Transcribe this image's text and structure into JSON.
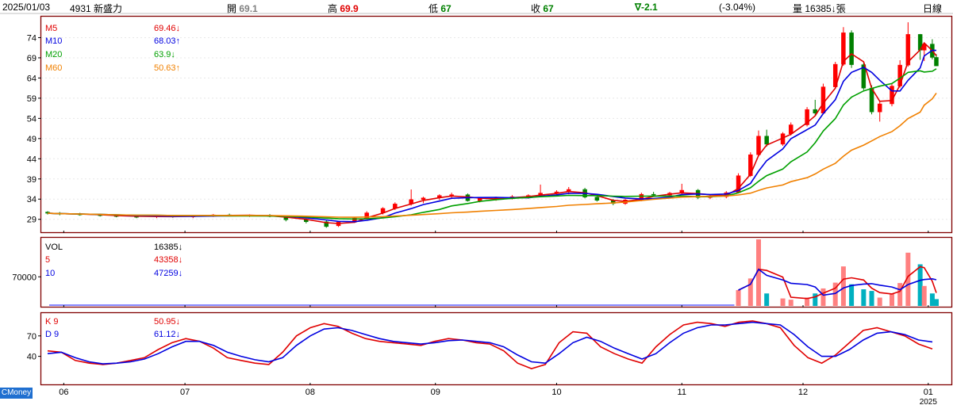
{
  "header": {
    "date": "2025/01/03",
    "stock": "4931 新盛力",
    "open_label": "開",
    "open": "69.1",
    "high_label": "高",
    "high": "69.9",
    "low_label": "低",
    "low": "67",
    "close_label": "收",
    "close": "67",
    "change": "∇-2.1",
    "change_pct": "(-3.04%)",
    "volume_label": "量",
    "volume": "16385↓張",
    "period": "日線"
  },
  "branding": {
    "label": "CMoney"
  },
  "colors": {
    "up": "#ff0000",
    "down": "#008000",
    "frame": "#800000",
    "ma5": "#e00000",
    "ma10": "#0000e0",
    "ma20": "#00a000",
    "ma60": "#f08000",
    "vol_up": "#ff8080",
    "vol_down": "#00b0c0",
    "k": "#e00000",
    "d": "#0000e0"
  },
  "legends": {
    "ma5": {
      "label": "M5",
      "value": "69.46↓"
    },
    "ma10": {
      "label": "M10",
      "value": "68.03↑"
    },
    "ma20": {
      "label": "M20",
      "value": "63.9↓"
    },
    "ma60": {
      "label": "M60",
      "value": "50.63↑"
    },
    "vol": {
      "label": "VOL",
      "value": "16385↓"
    },
    "vol5": {
      "label": "5",
      "value": "43358↓"
    },
    "vol10": {
      "label": "10",
      "value": "47259↓"
    },
    "k9": {
      "label": "K 9",
      "value": "50.95↓"
    },
    "d9": {
      "label": "D 9",
      "value": "61.12↓"
    }
  },
  "chart_data": [
    {
      "type": "candlestick",
      "title": "4931 新盛力 日線",
      "ylim": [
        26,
        79
      ],
      "yticks": [
        "74",
        "69",
        "64",
        "59",
        "54",
        "49",
        "44",
        "39",
        "34",
        "29"
      ],
      "xticks": [
        "06",
        "07",
        "08",
        "09",
        "10",
        "11",
        "12",
        "01"
      ],
      "xtick_sub": "2025",
      "x_range": [
        "2024-05-28",
        "2025-01-03"
      ],
      "candles_ohlc_estimated": [
        [
          "2024-05-28",
          30.8,
          31.0,
          30.2,
          30.5
        ],
        [
          "2024-05-31",
          30.5,
          30.8,
          30.0,
          30.3
        ],
        [
          "2024-06-05",
          30.3,
          30.6,
          29.9,
          30.1
        ],
        [
          "2024-06-10",
          30.1,
          30.4,
          29.7,
          30.0
        ],
        [
          "2024-06-14",
          30.0,
          30.2,
          29.5,
          29.7
        ],
        [
          "2024-06-19",
          29.7,
          30.0,
          29.3,
          29.6
        ],
        [
          "2024-06-24",
          29.6,
          30.0,
          29.3,
          29.8
        ],
        [
          "2024-06-28",
          29.8,
          30.1,
          29.4,
          29.6
        ],
        [
          "2024-07-03",
          29.6,
          30.0,
          29.3,
          29.9
        ],
        [
          "2024-07-08",
          29.9,
          30.3,
          29.6,
          30.1
        ],
        [
          "2024-07-12",
          30.1,
          30.4,
          29.8,
          29.9
        ],
        [
          "2024-07-17",
          29.9,
          30.2,
          29.6,
          30.0
        ],
        [
          "2024-07-22",
          30.0,
          30.3,
          29.5,
          29.7
        ],
        [
          "2024-07-26",
          29.7,
          29.9,
          28.5,
          28.9
        ],
        [
          "2024-07-31",
          28.9,
          29.2,
          28.0,
          28.4
        ],
        [
          "2024-08-05",
          28.4,
          28.8,
          26.9,
          27.2
        ],
        [
          "2024-08-08",
          27.4,
          28.6,
          27.1,
          28.3
        ],
        [
          "2024-08-12",
          28.3,
          29.6,
          28.1,
          29.3
        ],
        [
          "2024-08-15",
          29.3,
          31.0,
          29.0,
          30.6
        ],
        [
          "2024-08-19",
          30.6,
          32.0,
          30.2,
          31.7
        ],
        [
          "2024-08-22",
          31.7,
          33.2,
          31.3,
          32.8
        ],
        [
          "2024-08-26",
          32.8,
          36.4,
          32.4,
          33.9
        ],
        [
          "2024-08-29",
          33.9,
          34.6,
          33.0,
          34.3
        ],
        [
          "2024-09-02",
          34.3,
          35.2,
          33.8,
          34.9
        ],
        [
          "2024-09-05",
          34.9,
          35.6,
          34.2,
          35.1
        ],
        [
          "2024-09-09",
          35.1,
          35.4,
          33.4,
          33.6
        ],
        [
          "2024-09-12",
          33.6,
          34.4,
          33.2,
          34.1
        ],
        [
          "2024-09-16",
          34.1,
          34.6,
          33.6,
          34.4
        ],
        [
          "2024-09-20",
          34.4,
          35.0,
          33.9,
          34.6
        ],
        [
          "2024-09-24",
          34.6,
          35.2,
          34.1,
          34.9
        ],
        [
          "2024-09-27",
          34.9,
          37.6,
          34.6,
          35.5
        ],
        [
          "2024-10-01",
          35.5,
          36.2,
          35.0,
          35.8
        ],
        [
          "2024-10-04",
          35.8,
          37.0,
          35.2,
          36.4
        ],
        [
          "2024-10-08",
          36.4,
          36.8,
          34.2,
          34.5
        ],
        [
          "2024-10-11",
          34.5,
          34.9,
          33.4,
          33.7
        ],
        [
          "2024-10-15",
          33.7,
          34.0,
          32.5,
          32.9
        ],
        [
          "2024-10-18",
          32.9,
          34.0,
          32.6,
          33.8
        ],
        [
          "2024-10-22",
          33.8,
          35.6,
          33.5,
          35.2
        ],
        [
          "2024-10-25",
          35.2,
          35.8,
          34.6,
          35.0
        ],
        [
          "2024-10-29",
          35.0,
          35.8,
          34.7,
          35.5
        ],
        [
          "2024-11-01",
          35.5,
          37.8,
          35.1,
          36.2
        ],
        [
          "2024-11-05",
          36.2,
          36.5,
          34.0,
          34.4
        ],
        [
          "2024-11-08",
          34.4,
          35.0,
          34.0,
          34.6
        ],
        [
          "2024-11-12",
          34.6,
          36.0,
          34.2,
          35.6
        ],
        [
          "2024-11-15",
          35.6,
          40.4,
          35.4,
          39.8
        ],
        [
          "2024-11-18",
          39.8,
          45.6,
          39.5,
          45.0
        ],
        [
          "2024-11-20",
          45.0,
          51.0,
          44.6,
          49.6
        ],
        [
          "2024-11-22",
          49.6,
          51.2,
          47.0,
          47.6
        ],
        [
          "2024-11-26",
          47.6,
          50.6,
          47.2,
          50.2
        ],
        [
          "2024-11-28",
          50.2,
          53.0,
          49.8,
          52.4
        ],
        [
          "2024-12-02",
          52.4,
          56.8,
          52.0,
          56.2
        ],
        [
          "2024-12-04",
          56.2,
          58.6,
          54.6,
          55.3
        ],
        [
          "2024-12-06",
          55.3,
          62.6,
          55.0,
          61.8
        ],
        [
          "2024-12-09",
          61.8,
          68.0,
          61.3,
          67.4
        ],
        [
          "2024-12-11",
          67.4,
          76.6,
          67.0,
          75.2
        ],
        [
          "2024-12-13",
          75.2,
          75.8,
          66.5,
          67.3
        ],
        [
          "2024-12-16",
          67.3,
          67.8,
          61.0,
          61.5
        ],
        [
          "2024-12-18",
          61.5,
          62.2,
          55.0,
          55.6
        ],
        [
          "2024-12-20",
          55.6,
          58.2,
          53.2,
          57.6
        ],
        [
          "2024-12-23",
          57.6,
          62.6,
          57.0,
          62.0
        ],
        [
          "2024-12-25",
          62.0,
          68.4,
          61.6,
          67.2
        ],
        [
          "2024-12-27",
          67.2,
          77.8,
          66.8,
          74.8
        ],
        [
          "2024-12-30",
          74.8,
          74.9,
          68.5,
          70.9
        ],
        [
          "2024-12-31",
          70.9,
          72.4,
          68.2,
          72.4
        ],
        [
          "2025-01-02",
          72.4,
          73.6,
          68.6,
          69.1
        ],
        [
          "2025-01-03",
          69.1,
          69.9,
          67.0,
          67.0
        ]
      ]
    },
    {
      "type": "bar",
      "title": "VOL",
      "yticks": [
        "70000"
      ],
      "ylim": [
        0,
        160000
      ],
      "volume_estimated": [
        [
          "2024-11-15",
          38000
        ],
        [
          "2024-11-18",
          66000
        ],
        [
          "2024-11-20",
          160000
        ],
        [
          "2024-11-22",
          30000
        ],
        [
          "2024-11-26",
          18000
        ],
        [
          "2024-11-28",
          15000
        ],
        [
          "2024-12-02",
          20000
        ],
        [
          "2024-12-04",
          30000
        ],
        [
          "2024-12-06",
          42000
        ],
        [
          "2024-12-09",
          56000
        ],
        [
          "2024-12-11",
          95000
        ],
        [
          "2024-12-13",
          52000
        ],
        [
          "2024-12-16",
          40000
        ],
        [
          "2024-12-18",
          36000
        ],
        [
          "2024-12-20",
          20000
        ],
        [
          "2024-12-23",
          30000
        ],
        [
          "2024-12-25",
          55000
        ],
        [
          "2024-12-27",
          128000
        ],
        [
          "2024-12-30",
          100000
        ],
        [
          "2024-12-31",
          48000
        ],
        [
          "2025-01-02",
          30000
        ],
        [
          "2025-01-03",
          16385
        ]
      ]
    },
    {
      "type": "line",
      "title": "KD",
      "ylim": [
        0,
        100
      ],
      "yticks": [
        "70",
        "40"
      ],
      "series": [
        {
          "name": "K 9",
          "values": [
            48,
            46,
            34,
            30,
            28,
            30,
            34,
            38,
            50,
            60,
            66,
            62,
            52,
            38,
            34,
            30,
            28,
            46,
            70,
            82,
            88,
            84,
            74,
            66,
            62,
            60,
            58,
            56,
            62,
            66,
            64,
            60,
            58,
            48,
            30,
            22,
            28,
            60,
            76,
            74,
            54,
            44,
            36,
            30,
            54,
            72,
            86,
            90,
            88,
            84,
            90,
            92,
            88,
            82,
            56,
            38,
            30,
            42,
            60,
            78,
            82,
            76,
            70,
            58,
            50.95
          ]
        },
        {
          "name": "D 9",
          "values": [
            44,
            46,
            38,
            32,
            29,
            30,
            32,
            36,
            44,
            54,
            62,
            62,
            56,
            46,
            40,
            35,
            32,
            38,
            56,
            70,
            80,
            82,
            78,
            72,
            66,
            62,
            60,
            58,
            60,
            63,
            64,
            62,
            60,
            54,
            42,
            32,
            30,
            44,
            60,
            68,
            62,
            52,
            44,
            36,
            44,
            60,
            74,
            82,
            86,
            86,
            88,
            90,
            88,
            86,
            72,
            54,
            40,
            40,
            50,
            64,
            74,
            76,
            72,
            64,
            61.12
          ]
        }
      ]
    }
  ]
}
